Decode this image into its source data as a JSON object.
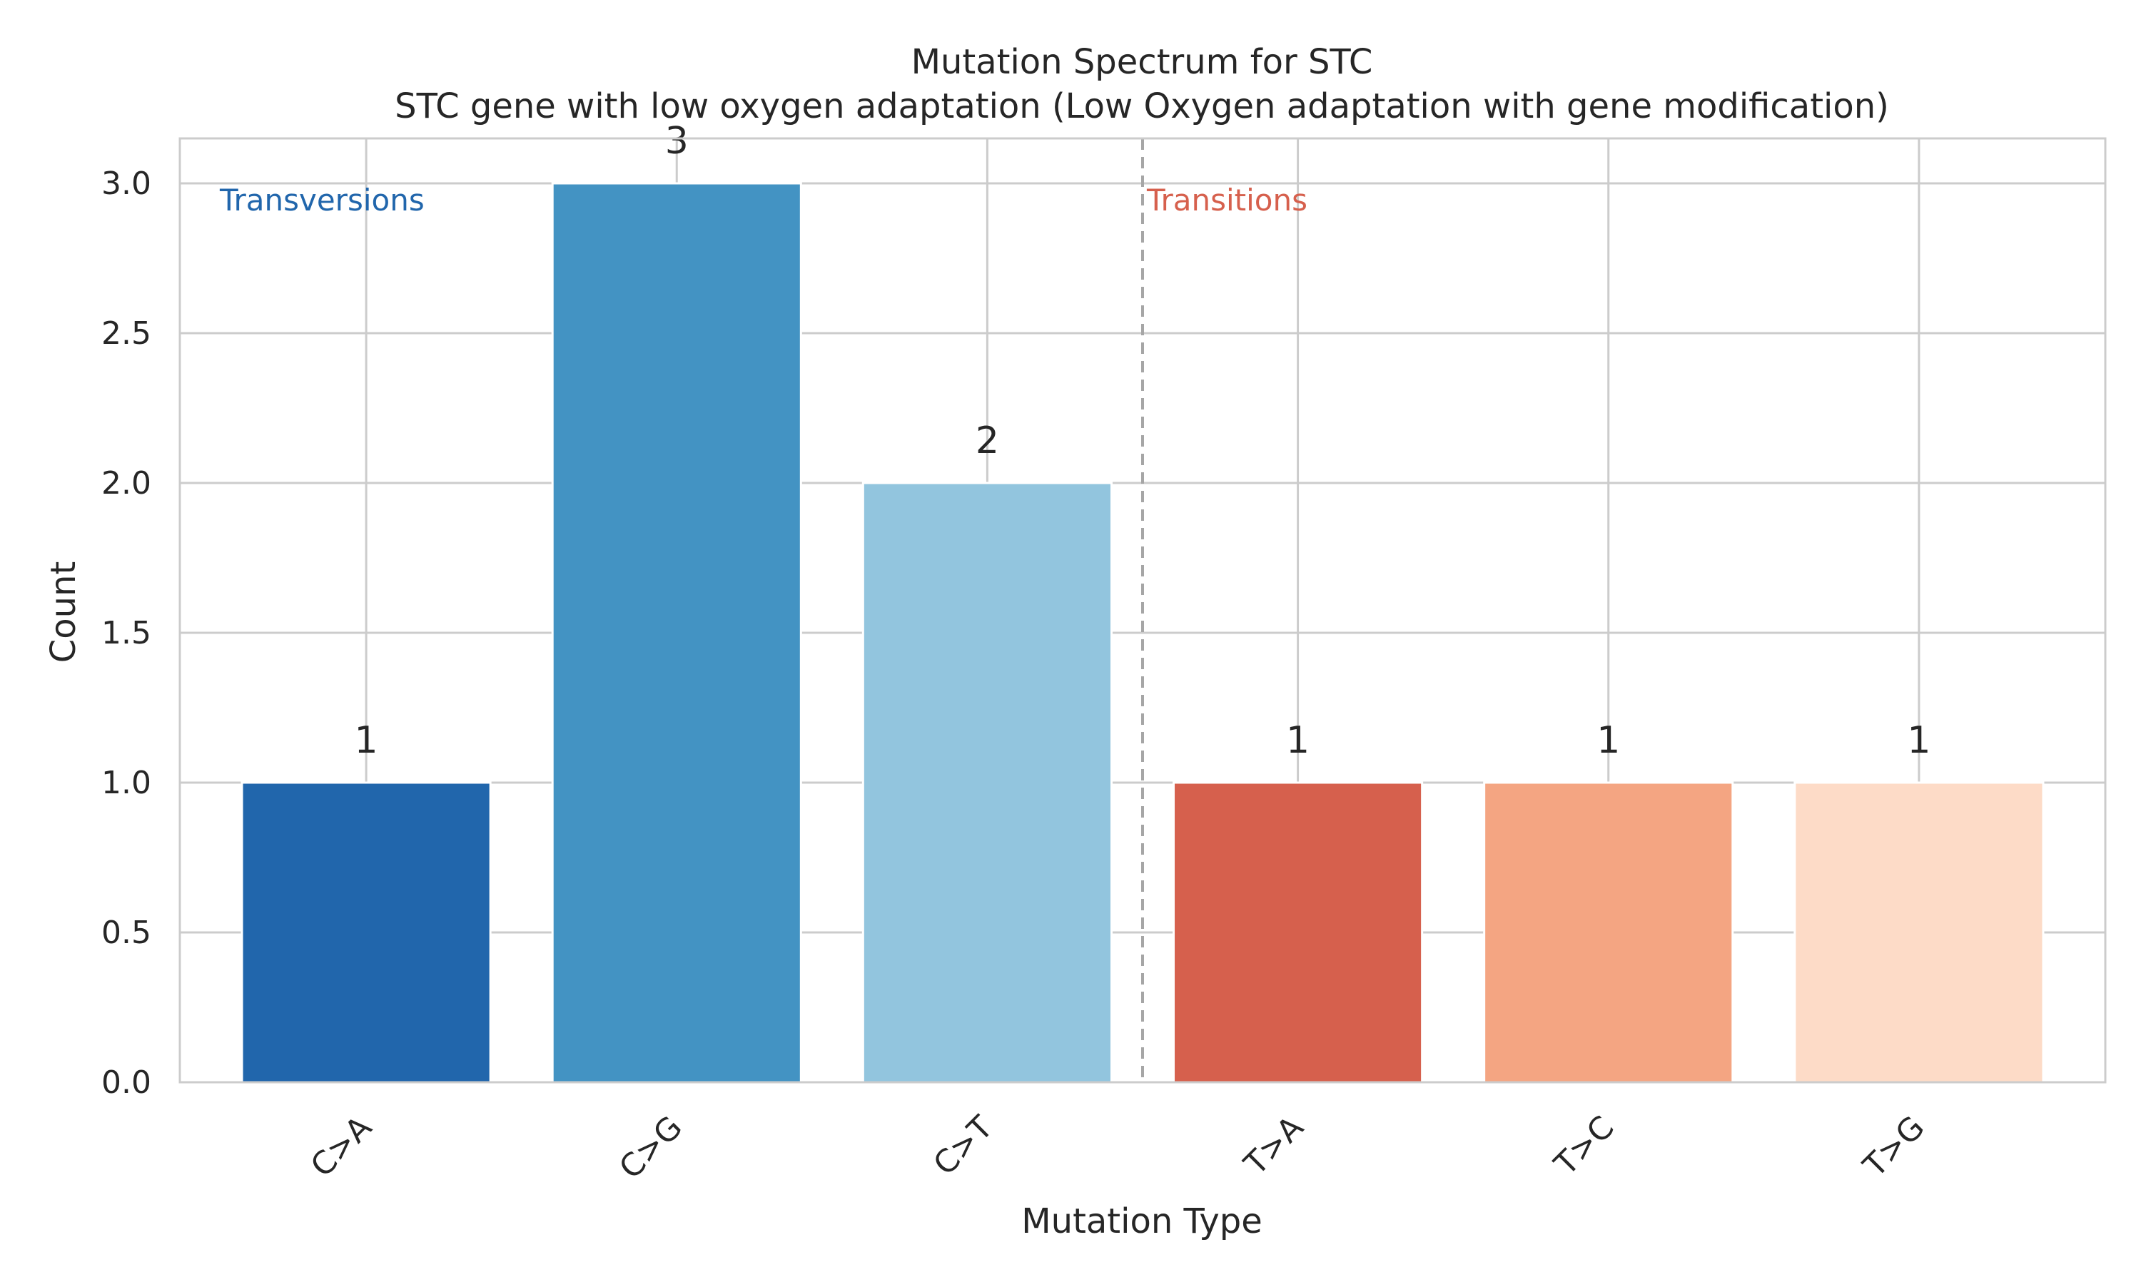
{
  "chart_data": {
    "type": "bar",
    "title": "Mutation Spectrum for STC",
    "subtitle": "STC gene with low oxygen adaptation (Low Oxygen adaptation with gene modification)",
    "xlabel": "Mutation Type",
    "ylabel": "Count",
    "categories": [
      "C>A",
      "C>G",
      "C>T",
      "T>A",
      "T>C",
      "T>G"
    ],
    "values": [
      1,
      3,
      2,
      1,
      1,
      1
    ],
    "data_labels": [
      "1",
      "3",
      "2",
      "1",
      "1",
      "1"
    ],
    "bar_colors": [
      "#2166ac",
      "#4393c3",
      "#92c5de",
      "#d6604d",
      "#f4a582",
      "#fddbc7"
    ],
    "ylim": [
      0,
      3.15
    ],
    "yticks": [
      0.0,
      0.5,
      1.0,
      1.5,
      2.0,
      2.5,
      3.0
    ],
    "ytick_labels": [
      "0.0",
      "0.5",
      "1.0",
      "1.5",
      "2.0",
      "2.5",
      "3.0"
    ],
    "grid": true,
    "separator": {
      "between": [
        "C>T",
        "T>A"
      ],
      "style": "dashed"
    },
    "group_labels": [
      {
        "text": "Transversions",
        "color": "#2166ac"
      },
      {
        "text": "Transitions",
        "color": "#d6604d"
      }
    ]
  }
}
